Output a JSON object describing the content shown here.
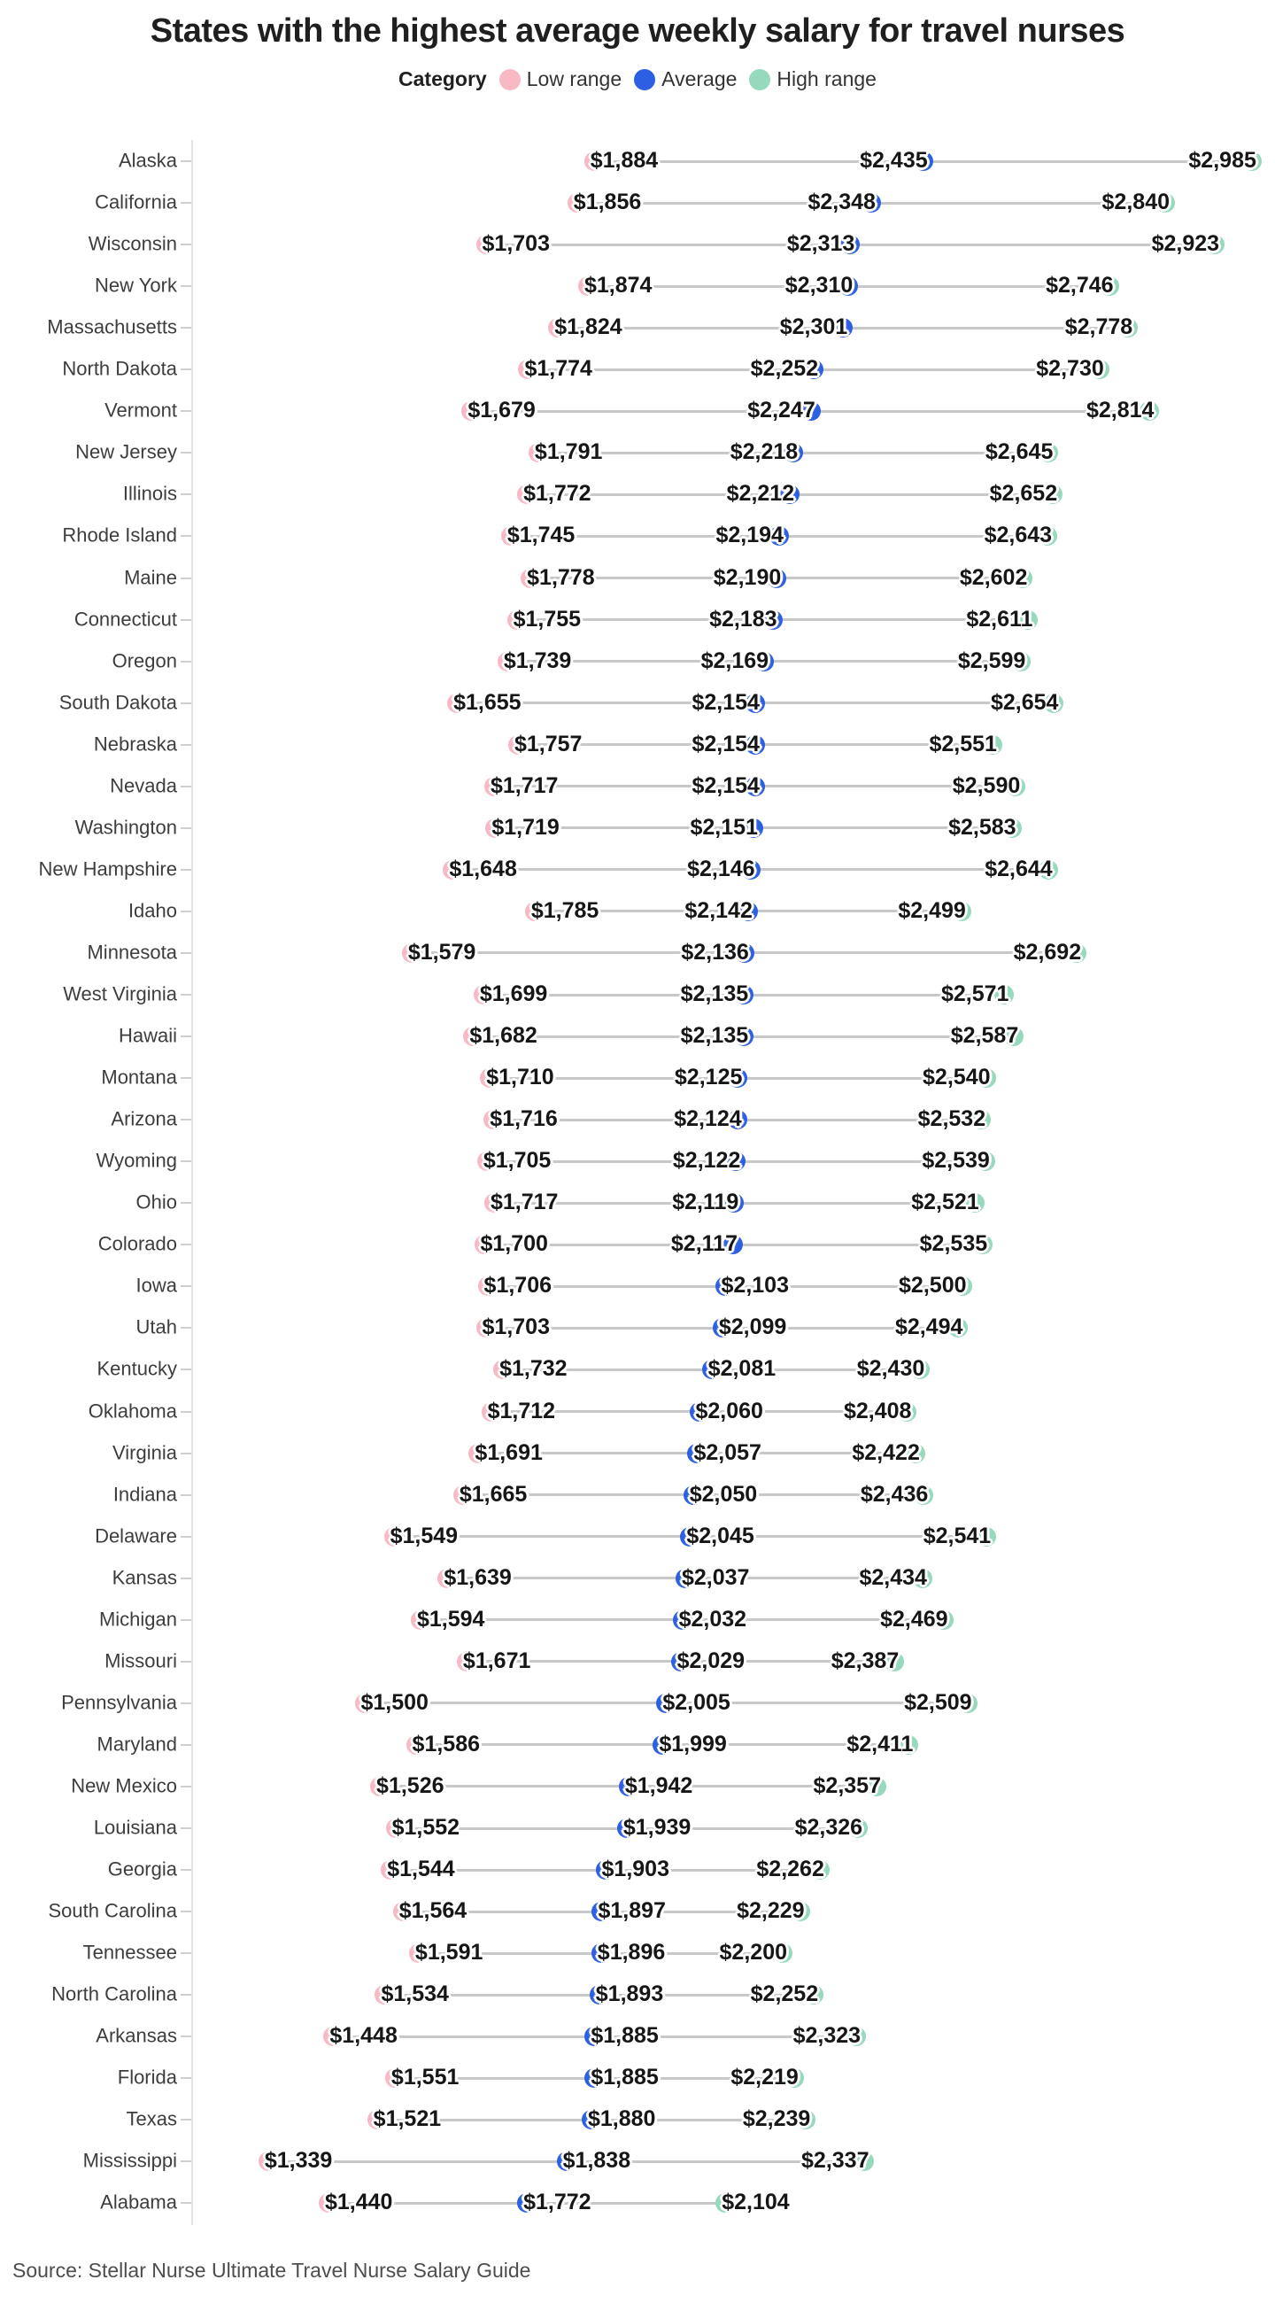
{
  "title": "States with the highest average weekly salary for travel nurses",
  "legend": {
    "label": "Category",
    "items": [
      {
        "name": "Low range",
        "color": "#f9b9c4"
      },
      {
        "name": "Average",
        "color": "#2d5fe2"
      },
      {
        "name": "High range",
        "color": "#96d9bd"
      }
    ]
  },
  "source": "Source: Stellar Nurse Ultimate Travel Nurse Salary Guide",
  "colors": {
    "low": "#f9b9c4",
    "avg": "#2d5fe2",
    "high": "#96d9bd",
    "connector": "#c8c8c8",
    "axis": "#e3e3e3",
    "tick": "#cfcfcf"
  },
  "chart_data": {
    "type": "scatter",
    "subtype": "dumbbell-dot-plot",
    "series_names": [
      "Low range",
      "Average",
      "High range"
    ],
    "value_prefix": "$",
    "xlim": [
      1200,
      3050
    ],
    "grid": "off",
    "legend_position": "top-center",
    "rows": [
      {
        "state": "Alaska",
        "low": 1884,
        "avg": 2435,
        "high": 2985,
        "avg_side": "left",
        "high_side": "left"
      },
      {
        "state": "California",
        "low": 1856,
        "avg": 2348,
        "high": 2840,
        "avg_side": "left",
        "high_side": "left"
      },
      {
        "state": "Wisconsin",
        "low": 1703,
        "avg": 2313,
        "high": 2923,
        "avg_side": "left",
        "high_side": "left"
      },
      {
        "state": "New York",
        "low": 1874,
        "avg": 2310,
        "high": 2746,
        "avg_side": "left",
        "high_side": "left"
      },
      {
        "state": "Massachusetts",
        "low": 1824,
        "avg": 2301,
        "high": 2778,
        "avg_side": "left",
        "high_side": "left"
      },
      {
        "state": "North Dakota",
        "low": 1774,
        "avg": 2252,
        "high": 2730,
        "avg_side": "left",
        "high_side": "left"
      },
      {
        "state": "Vermont",
        "low": 1679,
        "avg": 2247,
        "high": 2814,
        "avg_side": "left",
        "high_side": "left"
      },
      {
        "state": "New Jersey",
        "low": 1791,
        "avg": 2218,
        "high": 2645,
        "avg_side": "left",
        "high_side": "left"
      },
      {
        "state": "Illinois",
        "low": 1772,
        "avg": 2212,
        "high": 2652,
        "avg_side": "left",
        "high_side": "left"
      },
      {
        "state": "Rhode Island",
        "low": 1745,
        "avg": 2194,
        "high": 2643,
        "avg_side": "left",
        "high_side": "left"
      },
      {
        "state": "Maine",
        "low": 1778,
        "avg": 2190,
        "high": 2602,
        "avg_side": "left",
        "high_side": "left"
      },
      {
        "state": "Connecticut",
        "low": 1755,
        "avg": 2183,
        "high": 2611,
        "avg_side": "left",
        "high_side": "left"
      },
      {
        "state": "Oregon",
        "low": 1739,
        "avg": 2169,
        "high": 2599,
        "avg_side": "left",
        "high_side": "left"
      },
      {
        "state": "South Dakota",
        "low": 1655,
        "avg": 2154,
        "high": 2654,
        "avg_side": "left",
        "high_side": "left"
      },
      {
        "state": "Nebraska",
        "low": 1757,
        "avg": 2154,
        "high": 2551,
        "avg_side": "left",
        "high_side": "left"
      },
      {
        "state": "Nevada",
        "low": 1717,
        "avg": 2154,
        "high": 2590,
        "avg_side": "left",
        "high_side": "left"
      },
      {
        "state": "Washington",
        "low": 1719,
        "avg": 2151,
        "high": 2583,
        "avg_side": "left",
        "high_side": "left"
      },
      {
        "state": "New Hampshire",
        "low": 1648,
        "avg": 2146,
        "high": 2644,
        "avg_side": "left",
        "high_side": "left"
      },
      {
        "state": "Idaho",
        "low": 1785,
        "avg": 2142,
        "high": 2499,
        "avg_side": "left",
        "high_side": "left"
      },
      {
        "state": "Minnesota",
        "low": 1579,
        "avg": 2136,
        "high": 2692,
        "avg_side": "left",
        "high_side": "left"
      },
      {
        "state": "West Virginia",
        "low": 1699,
        "avg": 2135,
        "high": 2571,
        "avg_side": "left",
        "high_side": "left"
      },
      {
        "state": "Hawaii",
        "low": 1682,
        "avg": 2135,
        "high": 2587,
        "avg_side": "left",
        "high_side": "left"
      },
      {
        "state": "Montana",
        "low": 1710,
        "avg": 2125,
        "high": 2540,
        "avg_side": "left",
        "high_side": "left"
      },
      {
        "state": "Arizona",
        "low": 1716,
        "avg": 2124,
        "high": 2532,
        "avg_side": "left",
        "high_side": "left"
      },
      {
        "state": "Wyoming",
        "low": 1705,
        "avg": 2122,
        "high": 2539,
        "avg_side": "left",
        "high_side": "left"
      },
      {
        "state": "Ohio",
        "low": 1717,
        "avg": 2119,
        "high": 2521,
        "avg_side": "left",
        "high_side": "left"
      },
      {
        "state": "Colorado",
        "low": 1700,
        "avg": 2117,
        "high": 2535,
        "avg_side": "left",
        "high_side": "left"
      },
      {
        "state": "Iowa",
        "low": 1706,
        "avg": 2103,
        "high": 2500,
        "avg_side": "right",
        "high_side": "left"
      },
      {
        "state": "Utah",
        "low": 1703,
        "avg": 2099,
        "high": 2494,
        "avg_side": "right",
        "high_side": "left"
      },
      {
        "state": "Kentucky",
        "low": 1732,
        "avg": 2081,
        "high": 2430,
        "avg_side": "right",
        "high_side": "left"
      },
      {
        "state": "Oklahoma",
        "low": 1712,
        "avg": 2060,
        "high": 2408,
        "avg_side": "right",
        "high_side": "left"
      },
      {
        "state": "Virginia",
        "low": 1691,
        "avg": 2057,
        "high": 2422,
        "avg_side": "right",
        "high_side": "left"
      },
      {
        "state": "Indiana",
        "low": 1665,
        "avg": 2050,
        "high": 2436,
        "avg_side": "right",
        "high_side": "left"
      },
      {
        "state": "Delaware",
        "low": 1549,
        "avg": 2045,
        "high": 2541,
        "avg_side": "right",
        "high_side": "left"
      },
      {
        "state": "Kansas",
        "low": 1639,
        "avg": 2037,
        "high": 2434,
        "avg_side": "right",
        "high_side": "left"
      },
      {
        "state": "Michigan",
        "low": 1594,
        "avg": 2032,
        "high": 2469,
        "avg_side": "right",
        "high_side": "left"
      },
      {
        "state": "Missouri",
        "low": 1671,
        "avg": 2029,
        "high": 2387,
        "avg_side": "right",
        "high_side": "left"
      },
      {
        "state": "Pennsylvania",
        "low": 1500,
        "avg": 2005,
        "high": 2509,
        "avg_side": "right",
        "high_side": "left"
      },
      {
        "state": "Maryland",
        "low": 1586,
        "avg": 1999,
        "high": 2411,
        "avg_side": "right",
        "high_side": "left"
      },
      {
        "state": "New Mexico",
        "low": 1526,
        "avg": 1942,
        "high": 2357,
        "avg_side": "right",
        "high_side": "left"
      },
      {
        "state": "Louisiana",
        "low": 1552,
        "avg": 1939,
        "high": 2326,
        "avg_side": "right",
        "high_side": "left"
      },
      {
        "state": "Georgia",
        "low": 1544,
        "avg": 1903,
        "high": 2262,
        "avg_side": "right",
        "high_side": "left"
      },
      {
        "state": "South Carolina",
        "low": 1564,
        "avg": 1897,
        "high": 2229,
        "avg_side": "right",
        "high_side": "left"
      },
      {
        "state": "Tennessee",
        "low": 1591,
        "avg": 1896,
        "high": 2200,
        "avg_side": "right",
        "high_side": "left"
      },
      {
        "state": "North Carolina",
        "low": 1534,
        "avg": 1893,
        "high": 2252,
        "avg_side": "right",
        "high_side": "left"
      },
      {
        "state": "Arkansas",
        "low": 1448,
        "avg": 1885,
        "high": 2323,
        "avg_side": "right",
        "high_side": "left"
      },
      {
        "state": "Florida",
        "low": 1551,
        "avg": 1885,
        "high": 2219,
        "avg_side": "right",
        "high_side": "left"
      },
      {
        "state": "Texas",
        "low": 1521,
        "avg": 1880,
        "high": 2239,
        "avg_side": "right",
        "high_side": "left"
      },
      {
        "state": "Mississippi",
        "low": 1339,
        "avg": 1838,
        "high": 2337,
        "avg_side": "right",
        "high_side": "left"
      },
      {
        "state": "Alabama",
        "low": 1440,
        "avg": 1772,
        "high": 2104,
        "avg_side": "right",
        "high_side": "right"
      }
    ]
  }
}
